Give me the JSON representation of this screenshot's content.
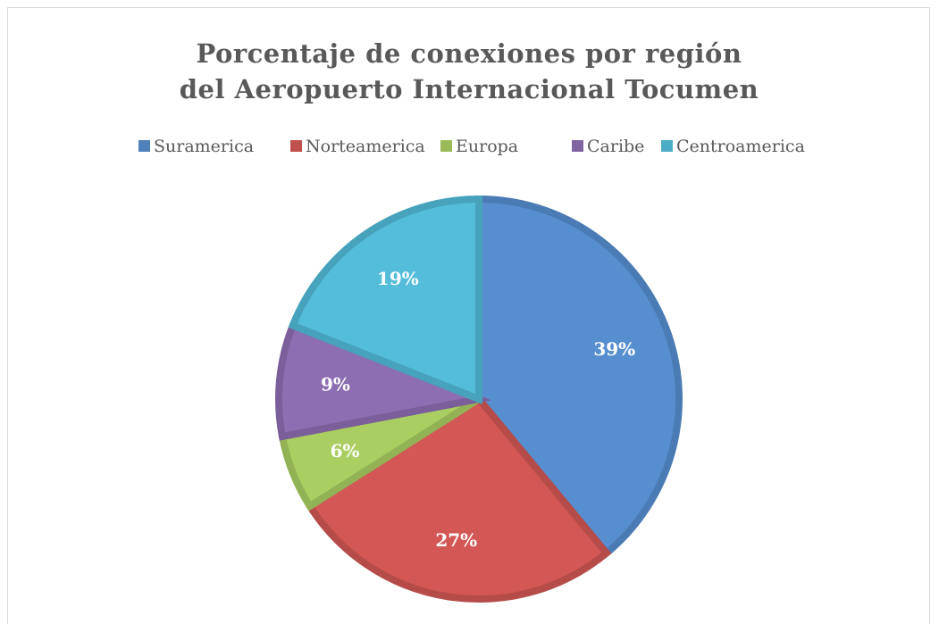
{
  "chart_data": {
    "type": "pie",
    "title": "Porcentaje de conexiones por región del Aeropuerto Internacional Tocumen",
    "categories": [
      "Suramerica",
      "Norteamerica",
      "Europa",
      "Caribe",
      "Centroamerica"
    ],
    "values": [
      39,
      27,
      6,
      9,
      19
    ],
    "value_labels": [
      "39%",
      "27%",
      "6%",
      "9%",
      "19%"
    ],
    "colors": [
      "#4f81bd",
      "#c0504d",
      "#9bbb59",
      "#8064a2",
      "#4bacc6"
    ],
    "legend": "top"
  }
}
